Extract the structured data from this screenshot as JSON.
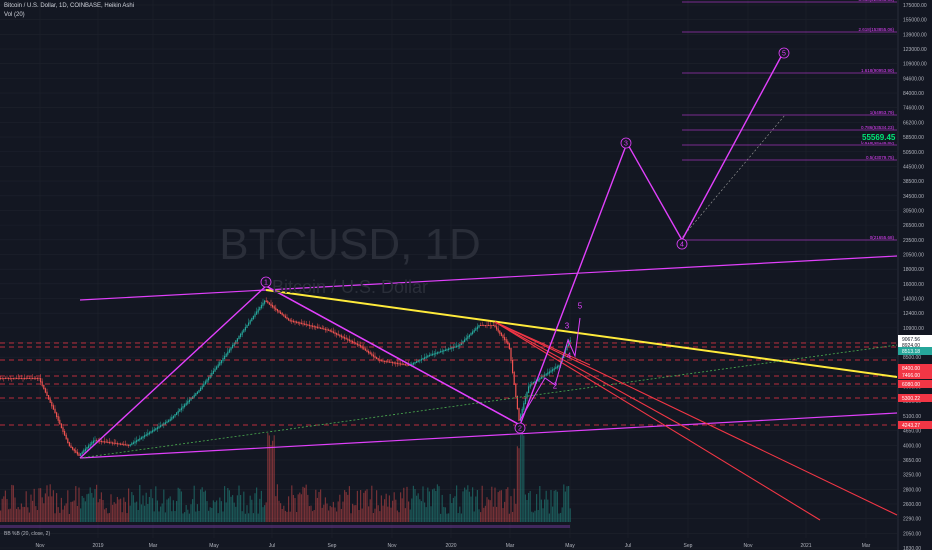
{
  "header": {
    "symbol_line": "Bitcoin / U.S. Dollar, 1D, COINBASE, Heikin Ashi",
    "vol_line": "Vol (20)"
  },
  "watermark": {
    "ticker": "BTCUSD, 1D",
    "name": "Bitcoin / U.S. Dollar"
  },
  "indicator_label": "BB %B (20, close, 2)",
  "current_price": "55569.45",
  "chart_data": {
    "type": "candlestick",
    "scale": "log",
    "series": [
      "Heikin Ashi price",
      "Volume"
    ],
    "x_tick_labels": [
      "Nov",
      "2019",
      "Mar",
      "May",
      "Jul",
      "Sep",
      "Nov",
      "2020",
      "Mar",
      "May",
      "Jul",
      "Sep",
      "Nov",
      "2021",
      "Mar"
    ],
    "y_tick_labels": [
      "175000.00",
      "155000.00",
      "139000.00",
      "123000.00",
      "109000.00",
      "94600.00",
      "84000.00",
      "74600.00",
      "66200.00",
      "58500.00",
      "50500.00",
      "44500.00",
      "38500.00",
      "34500.00",
      "30500.00",
      "26500.00",
      "23500.00",
      "20500.00",
      "18000.00",
      "16000.00",
      "14000.00",
      "12400.00",
      "10900.00",
      "9650.00",
      "8500.00",
      "7400.00",
      "6600.00",
      "5800.00",
      "5100.00",
      "4650.00",
      "4000.00",
      "3650.00",
      "3250.00",
      "2800.00",
      "2600.00",
      "2290.00",
      "2050.00",
      "1830.00"
    ],
    "price_badges": [
      {
        "value": "9067.56",
        "color": "#ffffff"
      },
      {
        "value": "8924.00",
        "color": "#ffffff"
      },
      {
        "value": "8513.18",
        "color": "#26a69a"
      },
      {
        "value": "8400.00",
        "color": "#f23645"
      },
      {
        "value": "7466.00",
        "color": "#f23645"
      },
      {
        "value": "6080.00",
        "color": "#f23645"
      },
      {
        "value": "5300.22",
        "color": "#f23645"
      },
      {
        "value": "4243.27",
        "color": "#f23645"
      }
    ],
    "fib_levels": [
      {
        "label": "3.618(228663.36)",
        "value": 228663.36
      },
      {
        "label": "2.618(153855.06)",
        "value": 153855.06
      },
      {
        "label": "1.618(90953.90)",
        "value": 90953.9
      },
      {
        "label": "1(64953.79)",
        "value": 64953.79
      },
      {
        "label": "0.786(53534.23)",
        "value": 53534.23
      },
      {
        "label": "0.618(48138.80)",
        "value": 48138.8
      },
      {
        "label": "0.5(43079.75)",
        "value": 43079.75
      },
      {
        "label": "0(21655.68)",
        "value": 21655.68
      }
    ],
    "wave_labels": [
      "1",
      "2",
      "3",
      "4",
      "5",
      "2",
      "3",
      "4",
      "5"
    ]
  }
}
